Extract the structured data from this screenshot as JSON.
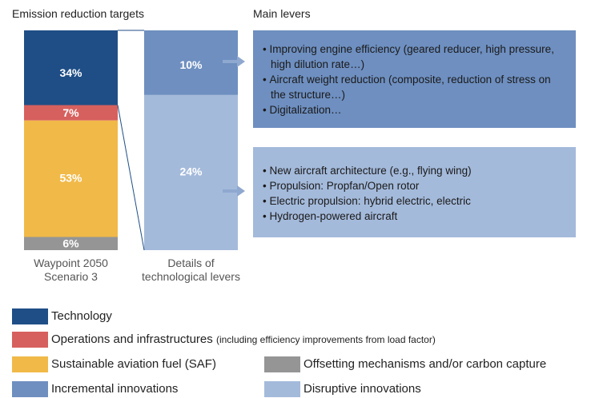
{
  "chart_data": {
    "type": "stacked-bar",
    "title": "Emission reduction targets",
    "categories": [
      "Waypoint 2050 Scenario 3",
      "Details of technological levers"
    ],
    "series": [
      {
        "name": "Technology",
        "color": "#1f4e86",
        "values": [
          34,
          null
        ],
        "value_labels": [
          "34%",
          null
        ]
      },
      {
        "name": "Operations and infrastructures",
        "note": "(including efficiency improvements from load factor)",
        "color": "#d6605e",
        "values": [
          7,
          null
        ],
        "value_labels": [
          "7%",
          null
        ]
      },
      {
        "name": "Sustainable aviation fuel (SAF)",
        "color": "#f1b948",
        "values": [
          53,
          null
        ],
        "value_labels": [
          "53%",
          null
        ]
      },
      {
        "name": "Offsetting mechanisms and/or carbon capture",
        "color": "#959595",
        "values": [
          6,
          null
        ],
        "value_labels": [
          "6%",
          null
        ]
      },
      {
        "name": "Incremental innovations",
        "color": "#6e8fc0",
        "values": [
          null,
          10
        ],
        "value_labels": [
          null,
          "10%"
        ]
      },
      {
        "name": "Disruptive innovations",
        "color": "#a4badb",
        "values": [
          null,
          24
        ],
        "value_labels": [
          null,
          "24%"
        ]
      }
    ],
    "levers": {
      "title": "Main levers",
      "groups": [
        {
          "items": [
            "Improving engine efficiency (geared reducer, high pressure, high dilution rate…)",
            "Aircraft weight reduction (composite, reduction of stress on the structure…)",
            "Digitalization…"
          ]
        },
        {
          "items": [
            "New aircraft architecture (e.g., flying wing)",
            "Propulsion: Propfan/Open rotor",
            "Electric propulsion: hybrid electric, electric",
            "Hydrogen-powered aircraft"
          ]
        }
      ]
    }
  }
}
